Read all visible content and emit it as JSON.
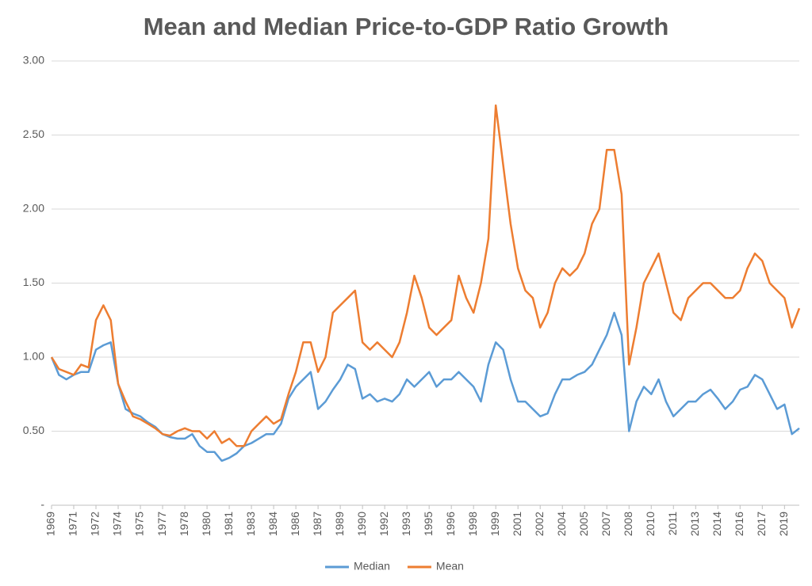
{
  "chart_data": {
    "type": "line",
    "title": "Mean and Median Price-to-GDP Ratio Growth",
    "categories": [
      "1969",
      null,
      null,
      "1971",
      null,
      null,
      "1972",
      null,
      null,
      "1974",
      null,
      null,
      "1975",
      null,
      null,
      "1977",
      null,
      null,
      "1978",
      null,
      null,
      "1980",
      null,
      null,
      "1981",
      null,
      null,
      "1983",
      null,
      null,
      "1984",
      null,
      null,
      "1986",
      null,
      null,
      "1987",
      null,
      null,
      "1989",
      null,
      null,
      "1990",
      null,
      null,
      "1992",
      null,
      null,
      "1993",
      null,
      null,
      "1995",
      null,
      null,
      "1996",
      null,
      null,
      "1998",
      null,
      null,
      "1999",
      null,
      null,
      "2001",
      null,
      null,
      "2002",
      null,
      null,
      "2004",
      null,
      null,
      "2005",
      null,
      null,
      "2007",
      null,
      null,
      "2008",
      null,
      null,
      "2010",
      null,
      null,
      "2011",
      null,
      null,
      "2013",
      null,
      null,
      "2014",
      null,
      null,
      "2016",
      null,
      null,
      "2017",
      null,
      null,
      "2019",
      null,
      null
    ],
    "series": [
      {
        "name": "Median",
        "color": "#5b9bd5",
        "values": [
          1.0,
          0.88,
          0.85,
          0.88,
          0.9,
          0.9,
          1.05,
          1.08,
          1.1,
          0.82,
          0.65,
          0.62,
          0.6,
          0.56,
          0.53,
          0.48,
          0.46,
          0.45,
          0.45,
          0.48,
          0.4,
          0.36,
          0.36,
          0.3,
          0.32,
          0.35,
          0.4,
          0.42,
          0.45,
          0.48,
          0.48,
          0.55,
          0.72,
          0.8,
          0.85,
          0.9,
          0.65,
          0.7,
          0.78,
          0.85,
          0.95,
          0.92,
          0.72,
          0.75,
          0.7,
          0.72,
          0.7,
          0.75,
          0.85,
          0.8,
          0.85,
          0.9,
          0.8,
          0.85,
          0.85,
          0.9,
          0.85,
          0.8,
          0.7,
          0.95,
          1.1,
          1.05,
          0.85,
          0.7,
          0.7,
          0.65,
          0.6,
          0.62,
          0.75,
          0.85,
          0.85,
          0.88,
          0.9,
          0.95,
          1.05,
          1.15,
          1.3,
          1.15,
          0.5,
          0.7,
          0.8,
          0.75,
          0.85,
          0.7,
          0.6,
          0.65,
          0.7,
          0.7,
          0.75,
          0.78,
          0.72,
          0.65,
          0.7,
          0.78,
          0.8,
          0.88,
          0.85,
          0.75,
          0.65,
          0.68,
          0.48,
          0.52
        ]
      },
      {
        "name": "Mean",
        "color": "#ed7d31",
        "values": [
          1.0,
          0.92,
          0.9,
          0.88,
          0.95,
          0.93,
          1.25,
          1.35,
          1.25,
          0.82,
          0.7,
          0.6,
          0.58,
          0.55,
          0.52,
          0.48,
          0.47,
          0.5,
          0.52,
          0.5,
          0.5,
          0.45,
          0.5,
          0.42,
          0.45,
          0.4,
          0.4,
          0.5,
          0.55,
          0.6,
          0.55,
          0.58,
          0.75,
          0.9,
          1.1,
          1.1,
          0.9,
          1.0,
          1.3,
          1.35,
          1.4,
          1.45,
          1.1,
          1.05,
          1.1,
          1.05,
          1.0,
          1.1,
          1.3,
          1.55,
          1.4,
          1.2,
          1.15,
          1.2,
          1.25,
          1.55,
          1.4,
          1.3,
          1.5,
          1.8,
          2.7,
          2.3,
          1.9,
          1.6,
          1.45,
          1.4,
          1.2,
          1.3,
          1.5,
          1.6,
          1.55,
          1.6,
          1.7,
          1.9,
          2.0,
          2.4,
          2.4,
          2.1,
          0.95,
          1.2,
          1.5,
          1.6,
          1.7,
          1.5,
          1.3,
          1.25,
          1.4,
          1.45,
          1.5,
          1.5,
          1.45,
          1.4,
          1.4,
          1.45,
          1.6,
          1.7,
          1.65,
          1.5,
          1.45,
          1.4,
          1.2,
          1.33
        ]
      }
    ],
    "ylim": [
      0,
      3
    ],
    "yticks": [
      {
        "value": 0,
        "label": "-"
      },
      {
        "value": 0.5,
        "label": "0.50"
      },
      {
        "value": 1,
        "label": "1.00"
      },
      {
        "value": 1.5,
        "label": "1.50"
      },
      {
        "value": 2,
        "label": "2.00"
      },
      {
        "value": 2.5,
        "label": "2.50"
      },
      {
        "value": 3,
        "label": "3.00"
      }
    ],
    "grid": true,
    "legend": "bottom"
  }
}
